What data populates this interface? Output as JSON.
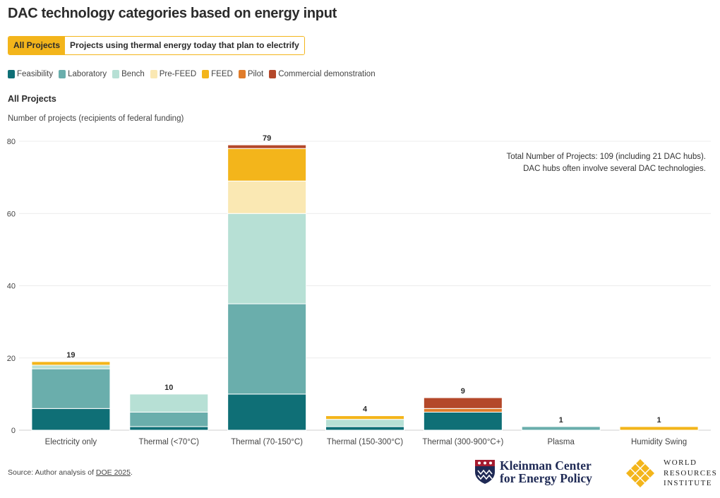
{
  "title": "DAC technology categories based on energy input",
  "tabs": [
    {
      "label": "All Projects",
      "active": true
    },
    {
      "label": "Projects using thermal energy today that plan to electrify",
      "active": false
    }
  ],
  "subhead": "All Projects",
  "note": "Total Number of Projects: 109 (including 21 DAC hubs). DAC hubs often involve several DAC technologies.",
  "source": {
    "prefix": "Source: Author analysis of ",
    "link": "DOE 2025",
    "suffix": "."
  },
  "logos": {
    "kleinman_line1": "Kleinman Center",
    "kleinman_line2": "for Energy Policy",
    "wri_line1": "WORLD",
    "wri_line2": "RESOURCES",
    "wri_line3": "INSTITUTE"
  },
  "chart_data": {
    "type": "bar",
    "stacked": true,
    "title": "DAC technology categories based on energy input",
    "ylabel": "Number of projects (recipients of federal funding)",
    "xlabel": "",
    "ylim": [
      0,
      80
    ],
    "yticks": [
      0,
      20,
      40,
      60,
      80
    ],
    "grid": true,
    "legend_position": "top-left",
    "categories": [
      "Electricity only",
      "Thermal (<70°C)",
      "Thermal (70-150°C)",
      "Thermal (150-300°C)",
      "Thermal (300-900°C+)",
      "Plasma",
      "Humidity Swing"
    ],
    "totals": [
      19,
      10,
      79,
      4,
      9,
      1,
      1
    ],
    "series": [
      {
        "name": "Feasibility",
        "color": "#0f6f76",
        "values": [
          6,
          1,
          10,
          1,
          5,
          0,
          0
        ]
      },
      {
        "name": "Laboratory",
        "color": "#6aaeac",
        "values": [
          11,
          4,
          25,
          0,
          0,
          1,
          0
        ]
      },
      {
        "name": "Bench",
        "color": "#b7e0d5",
        "values": [
          1,
          5,
          25,
          2,
          0,
          0,
          0
        ]
      },
      {
        "name": "Pre-FEED",
        "color": "#fae8b3",
        "values": [
          0,
          0,
          9,
          0,
          0,
          0,
          0
        ]
      },
      {
        "name": "FEED",
        "color": "#f3b51b",
        "values": [
          1,
          0,
          9,
          1,
          0,
          0,
          1
        ]
      },
      {
        "name": "Pilot",
        "color": "#e07c2a",
        "values": [
          0,
          0,
          0,
          0,
          1,
          0,
          0
        ]
      },
      {
        "name": "Commercial demonstration",
        "color": "#b4482a",
        "values": [
          0,
          0,
          1,
          0,
          3,
          0,
          0
        ]
      }
    ]
  }
}
